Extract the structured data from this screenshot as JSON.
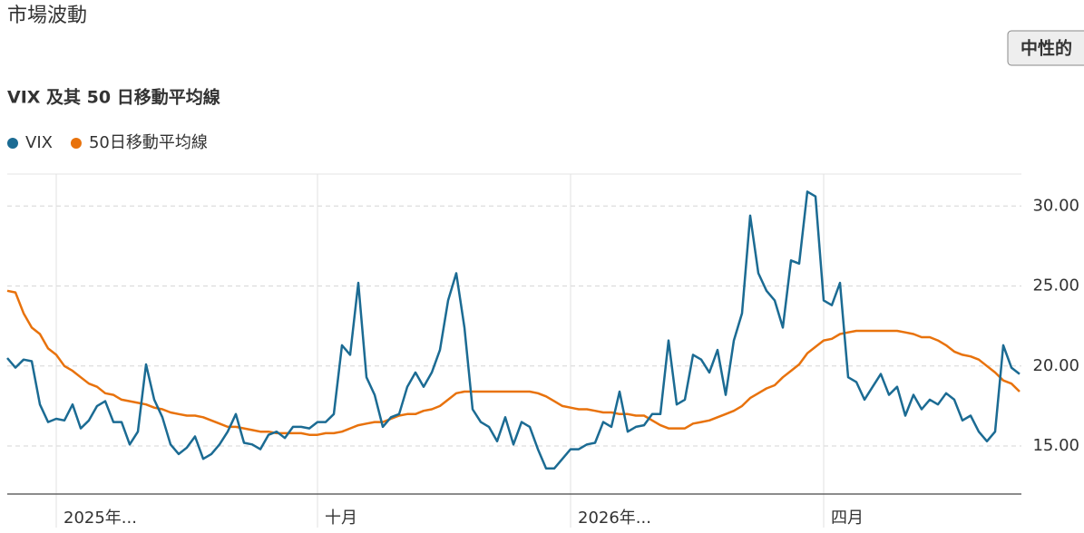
{
  "header": {
    "title": "市場波動",
    "button": "中性的"
  },
  "chart_data": {
    "type": "line",
    "title": "VIX 及其 50 日移動平均線",
    "categories": [
      null,
      null,
      null,
      null,
      null,
      null,
      "2025年...",
      null,
      null,
      null,
      null,
      null,
      null,
      null,
      null,
      null,
      null,
      null,
      null,
      null,
      null,
      null,
      null,
      null,
      null,
      null,
      null,
      null,
      null,
      null,
      null,
      null,
      null,
      null,
      null,
      null,
      null,
      null,
      "十月",
      null,
      null,
      null,
      null,
      null,
      null,
      null,
      null,
      null,
      null,
      null,
      null,
      null,
      null,
      null,
      null,
      null,
      null,
      null,
      null,
      null,
      null,
      null,
      null,
      null,
      null,
      null,
      null,
      null,
      null,
      "2026年...",
      null,
      null,
      null,
      null,
      null,
      null,
      null,
      null,
      null,
      null,
      null,
      null,
      null,
      null,
      null,
      null,
      null,
      null,
      null,
      null,
      null,
      null,
      null,
      null,
      null,
      null,
      null,
      null,
      null,
      null,
      "四月",
      null,
      null,
      null,
      null,
      null,
      null,
      null,
      null,
      null,
      null,
      null,
      null,
      null,
      null,
      null,
      null,
      null,
      null,
      null,
      null,
      null,
      null,
      null,
      null
    ],
    "series": [
      {
        "name": "VIX",
        "color": "#1b6b93",
        "values": [
          20.5,
          19.9,
          20.4,
          20.3,
          17.6,
          16.5,
          16.7,
          16.6,
          17.6,
          16.1,
          16.6,
          17.5,
          17.8,
          16.5,
          16.5,
          15.1,
          15.9,
          20.1,
          17.9,
          16.8,
          15.1,
          14.5,
          14.9,
          15.6,
          14.2,
          14.5,
          15.1,
          15.9,
          17.0,
          15.2,
          15.1,
          14.8,
          15.7,
          15.9,
          15.5,
          16.2,
          16.2,
          16.1,
          16.5,
          16.5,
          17.0,
          21.3,
          20.7,
          25.2,
          19.3,
          18.2,
          16.2,
          16.8,
          17.0,
          18.7,
          19.6,
          18.7,
          19.6,
          21.0,
          24.1,
          25.8,
          22.4,
          17.3,
          16.5,
          16.2,
          15.3,
          16.8,
          15.1,
          16.5,
          16.2,
          14.8,
          13.6,
          13.6,
          14.2,
          14.8,
          14.8,
          15.1,
          15.2,
          16.5,
          16.2,
          18.4,
          15.9,
          16.2,
          16.3,
          17.0,
          17.0,
          21.6,
          17.6,
          17.9,
          20.7,
          20.4,
          19.6,
          21.0,
          18.2,
          21.6,
          23.3,
          29.4,
          25.8,
          24.7,
          24.1,
          22.4,
          26.6,
          26.4,
          30.9,
          30.6,
          24.1,
          23.8,
          25.2,
          19.3,
          19.0,
          17.9,
          18.7,
          19.5,
          18.2,
          18.7,
          16.9,
          18.2,
          17.3,
          17.9,
          17.6,
          18.3,
          17.9,
          16.6,
          16.9,
          15.9,
          15.3,
          15.9,
          21.3,
          19.9,
          19.5
        ]
      },
      {
        "name": "50日移動平均線",
        "color": "#e8720c",
        "values": [
          24.7,
          24.6,
          23.3,
          22.4,
          22.0,
          21.1,
          20.7,
          20.0,
          19.7,
          19.3,
          18.9,
          18.7,
          18.3,
          18.2,
          17.9,
          17.8,
          17.7,
          17.6,
          17.4,
          17.3,
          17.1,
          17.0,
          16.9,
          16.9,
          16.8,
          16.6,
          16.4,
          16.2,
          16.2,
          16.1,
          16.0,
          15.9,
          15.9,
          15.8,
          15.8,
          15.8,
          15.8,
          15.7,
          15.7,
          15.8,
          15.8,
          15.9,
          16.1,
          16.3,
          16.4,
          16.5,
          16.5,
          16.7,
          16.9,
          17.0,
          17.0,
          17.2,
          17.3,
          17.5,
          17.9,
          18.3,
          18.4,
          18.4,
          18.4,
          18.4,
          18.4,
          18.4,
          18.4,
          18.4,
          18.4,
          18.3,
          18.1,
          17.8,
          17.5,
          17.4,
          17.3,
          17.3,
          17.2,
          17.1,
          17.1,
          17.0,
          17.0,
          16.9,
          16.9,
          16.6,
          16.3,
          16.1,
          16.1,
          16.1,
          16.4,
          16.5,
          16.6,
          16.8,
          17.0,
          17.2,
          17.5,
          18.0,
          18.3,
          18.6,
          18.8,
          19.3,
          19.7,
          20.1,
          20.8,
          21.2,
          21.6,
          21.7,
          22.0,
          22.1,
          22.2,
          22.2,
          22.2,
          22.2,
          22.2,
          22.2,
          22.1,
          22.0,
          21.8,
          21.8,
          21.6,
          21.3,
          20.9,
          20.7,
          20.6,
          20.4,
          20.0,
          19.6,
          19.1,
          18.9,
          18.4
        ]
      }
    ],
    "ylim": [
      12,
      32
    ],
    "yticks": [
      {
        "value": 15,
        "label": "15.00"
      },
      {
        "value": 20,
        "label": "20.00"
      },
      {
        "value": 25,
        "label": "25.00"
      },
      {
        "value": 30,
        "label": "30.00"
      }
    ],
    "grid": true
  }
}
